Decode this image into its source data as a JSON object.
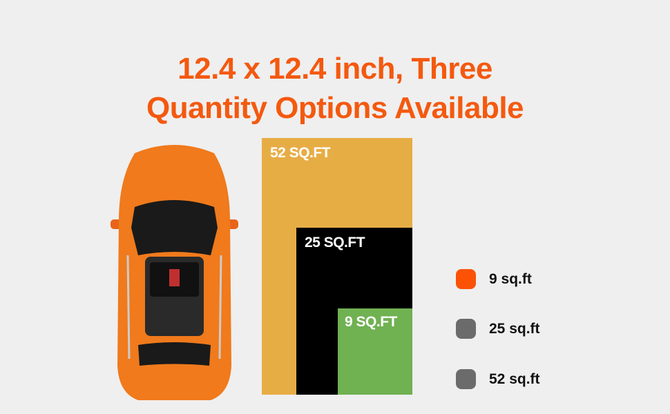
{
  "title": {
    "line1": "12.4 x 12.4 inch, Three",
    "line2": "Quantity Options Available"
  },
  "areas": [
    {
      "label": "52 SQ.FT",
      "color": "#e7ad45"
    },
    {
      "label": "25 SQ.FT",
      "color": "#000000"
    },
    {
      "label": "9 SQ.FT",
      "color": "#70b152"
    }
  ],
  "options": [
    {
      "label": "9 sq.ft",
      "color": "#fb5206",
      "selected": true
    },
    {
      "label": "25 sq.ft",
      "color": "#6b6b6b",
      "selected": false
    },
    {
      "label": "52 sq.ft",
      "color": "#6b6b6b",
      "selected": false
    }
  ],
  "accent_color": "#f4590f"
}
